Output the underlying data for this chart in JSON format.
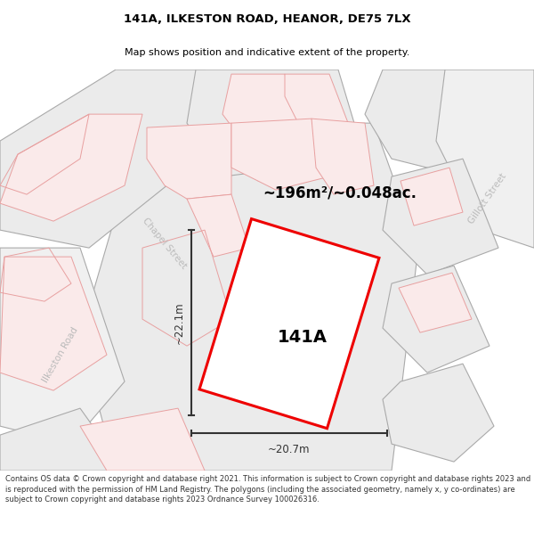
{
  "title": "141A, ILKESTON ROAD, HEANOR, DE75 7LX",
  "subtitle": "Map shows position and indicative extent of the property.",
  "footer": "Contains OS data © Crown copyright and database right 2021. This information is subject to Crown copyright and database rights 2023 and is reproduced with the permission of HM Land Registry. The polygons (including the associated geometry, namely x, y co-ordinates) are subject to Crown copyright and database rights 2023 Ordnance Survey 100026316.",
  "area_label": "~196m²/~0.048ac.",
  "property_label": "141A",
  "width_label": "~20.7m",
  "height_label": "~22.1m",
  "title_color": "#000000",
  "footer_color": "#333333",
  "dim_color": "#333333",
  "street_color": "#bbbbbb",
  "parcel_fill": "#ebebeb",
  "parcel_stroke": "#aaaaaa",
  "pink_stroke": "#e8a0a0",
  "pink_fill": "#faeaea",
  "property_fill": "#ffffff",
  "property_stroke": "#ee0000",
  "map_bg": "#ffffff"
}
